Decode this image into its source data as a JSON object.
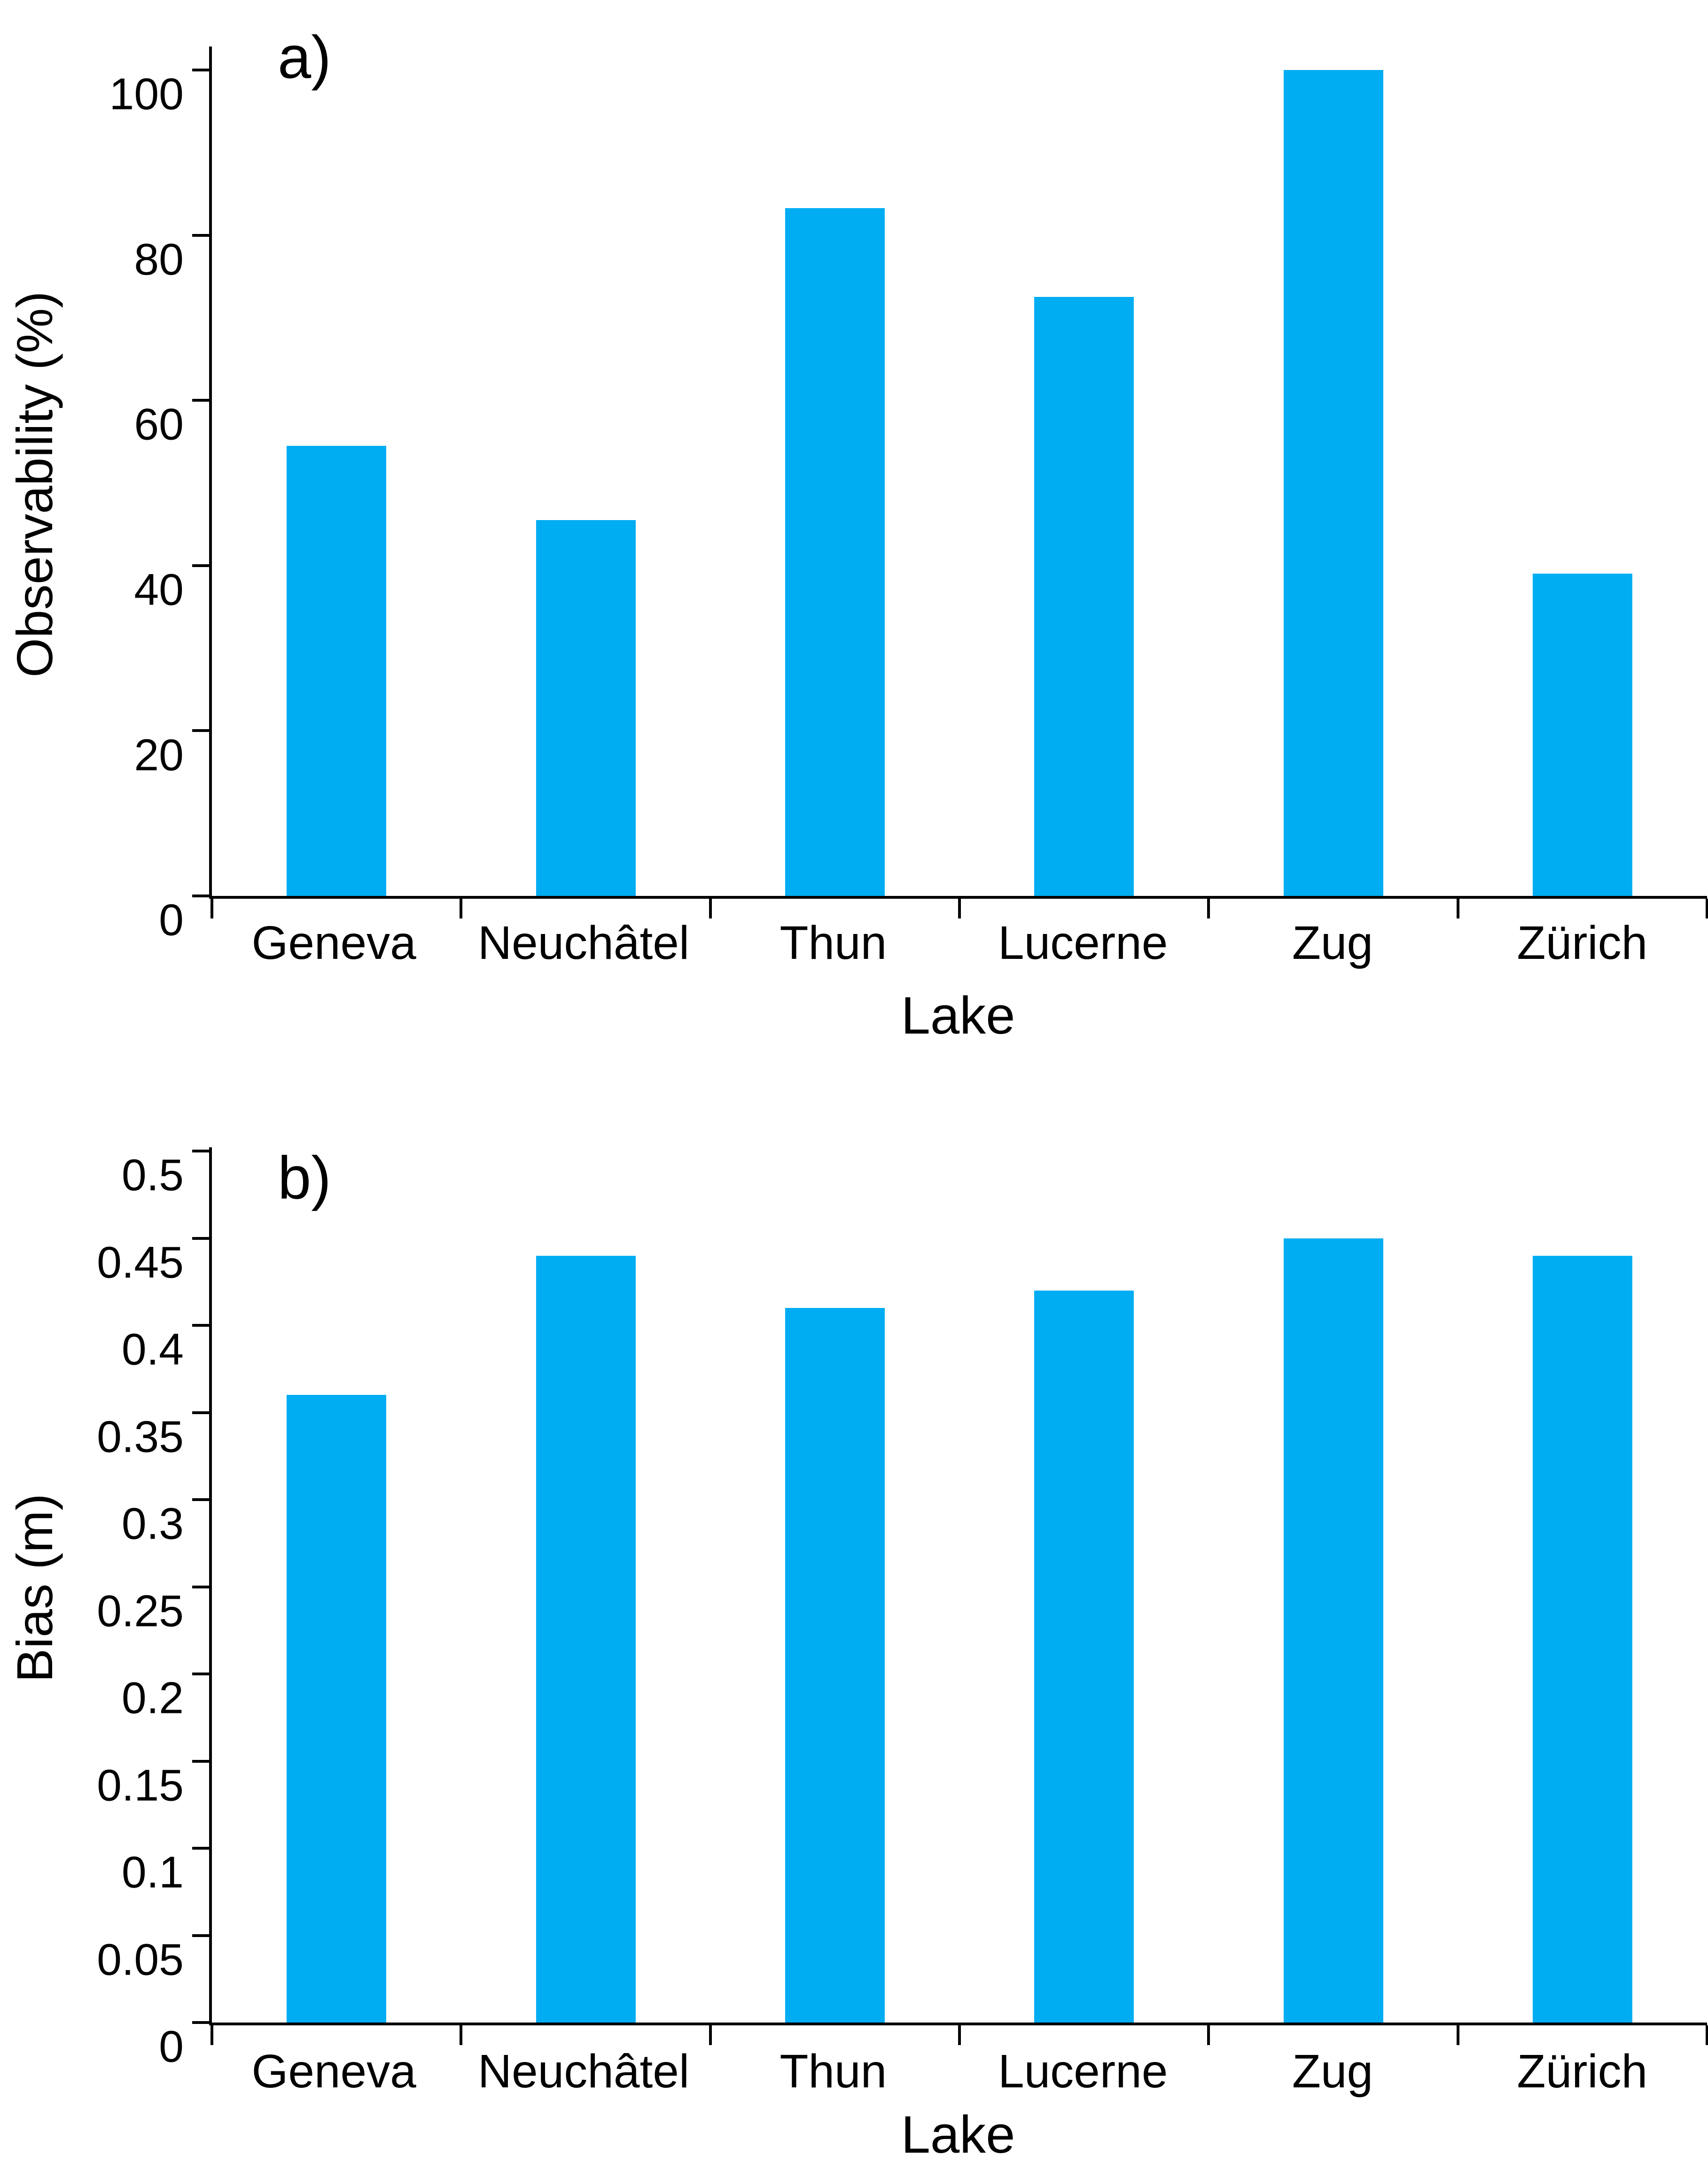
{
  "figure": {
    "background": "#ffffff",
    "axis_color": "#000000",
    "bar_color": "#00ADF2"
  },
  "chart_data": [
    {
      "type": "bar",
      "panel_label": "a)",
      "categories": [
        "Geneva",
        "Neuchâtel",
        "Thun",
        "Lucerne",
        "Zug",
        "Zürich"
      ],
      "values": [
        54.5,
        45.5,
        83.3,
        72.5,
        100,
        39
      ],
      "xlabel": "Lake",
      "ylabel": "Observability (%)",
      "ylim": [
        0,
        100
      ],
      "yticks": [
        {
          "value": 0,
          "label": "0"
        },
        {
          "value": 20,
          "label": "20"
        },
        {
          "value": 40,
          "label": "40"
        },
        {
          "value": 60,
          "label": "60"
        },
        {
          "value": 80,
          "label": "80"
        },
        {
          "value": 100,
          "label": "100"
        }
      ],
      "grid": false,
      "legend": "none",
      "bar_color": "#00ADF2"
    },
    {
      "type": "bar",
      "panel_label": "b)",
      "categories": [
        "Geneva",
        "Neuchâtel",
        "Thun",
        "Lucerne",
        "Zug",
        "Zürich"
      ],
      "values": [
        0.36,
        0.44,
        0.41,
        0.42,
        0.45,
        0.44
      ],
      "xlabel": "Lake",
      "ylabel": "Bias (m)",
      "ylim": [
        0,
        0.5
      ],
      "yticks": [
        {
          "value": 0,
          "label": "0"
        },
        {
          "value": 0.05,
          "label": "0.05"
        },
        {
          "value": 0.1,
          "label": "0.1"
        },
        {
          "value": 0.15,
          "label": "0.15"
        },
        {
          "value": 0.2,
          "label": "0.2"
        },
        {
          "value": 0.25,
          "label": "0.25"
        },
        {
          "value": 0.3,
          "label": "0.3"
        },
        {
          "value": 0.35,
          "label": "0.35"
        },
        {
          "value": 0.4,
          "label": "0.4"
        },
        {
          "value": 0.45,
          "label": "0.45"
        },
        {
          "value": 0.5,
          "label": "0.5"
        }
      ],
      "grid": false,
      "legend": "none",
      "bar_color": "#00ADF2"
    }
  ]
}
